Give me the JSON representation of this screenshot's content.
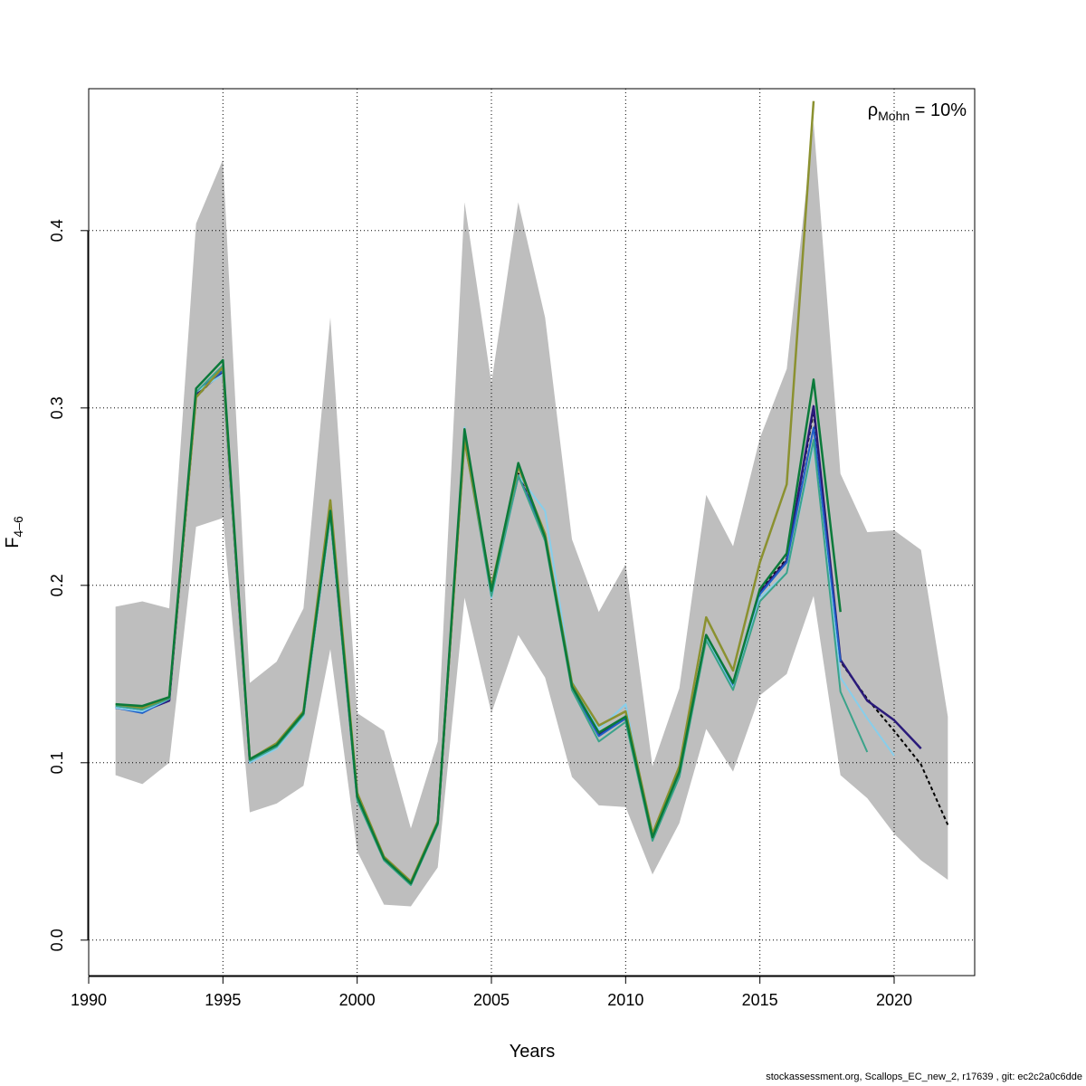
{
  "chart_data": {
    "type": "line",
    "title": "",
    "xlabel": "Years",
    "ylabel_base": "F",
    "ylabel_sub": "4–6",
    "xlim": [
      1990,
      2023
    ],
    "ylim": [
      -0.02,
      0.48
    ],
    "x_ticks": [
      1990,
      1995,
      2000,
      2005,
      2010,
      2015,
      2020
    ],
    "y_ticks": [
      0.0,
      0.1,
      0.2,
      0.3,
      0.4
    ],
    "y_tick_labels": [
      "0.0",
      "0.1",
      "0.2",
      "0.3",
      "0.4"
    ],
    "grid": true,
    "annotation": {
      "rho": "ρ",
      "sub": "Mohn",
      "text": " = 10%"
    },
    "band": {
      "x": [
        1991,
        1992,
        1993,
        1994,
        1995,
        1996,
        1997,
        1998,
        1999,
        2000,
        2001,
        2002,
        2003,
        2004,
        2005,
        2006,
        2007,
        2008,
        2009,
        2010,
        2011,
        2012,
        2013,
        2014,
        2015,
        2016,
        2017,
        2018,
        2019,
        2020,
        2021,
        2022
      ],
      "upper": [
        0.188,
        0.191,
        0.187,
        0.404,
        0.44,
        0.145,
        0.157,
        0.187,
        0.351,
        0.128,
        0.118,
        0.063,
        0.112,
        0.416,
        0.314,
        0.416,
        0.351,
        0.226,
        0.185,
        0.212,
        0.098,
        0.142,
        0.251,
        0.222,
        0.283,
        0.322,
        0.461,
        0.263,
        0.23,
        0.231,
        0.22,
        0.126
      ],
      "lower": [
        0.093,
        0.088,
        0.1,
        0.233,
        0.238,
        0.072,
        0.077,
        0.087,
        0.164,
        0.05,
        0.02,
        0.019,
        0.041,
        0.193,
        0.128,
        0.172,
        0.148,
        0.092,
        0.076,
        0.075,
        0.037,
        0.066,
        0.119,
        0.095,
        0.138,
        0.15,
        0.194,
        0.093,
        0.08,
        0.06,
        0.045,
        0.034
      ],
      "color": "#bebebe"
    },
    "series": [
      {
        "color": "#000000",
        "dashed": true,
        "width": 2,
        "x": [
          1991,
          1992,
          1993,
          1994,
          1995,
          1996,
          1997,
          1998,
          1999,
          2000,
          2001,
          2002,
          2003,
          2004,
          2005,
          2006,
          2007,
          2008,
          2009,
          2010,
          2011,
          2012,
          2013,
          2014,
          2015,
          2016,
          2017,
          2018,
          2019,
          2020,
          2021,
          2022
        ],
        "values": [
          0.131,
          0.129,
          0.135,
          0.306,
          0.322,
          0.101,
          0.109,
          0.127,
          0.24,
          0.08,
          0.046,
          0.032,
          0.066,
          0.284,
          0.196,
          0.263,
          0.228,
          0.143,
          0.116,
          0.125,
          0.058,
          0.094,
          0.171,
          0.143,
          0.197,
          0.215,
          0.298,
          0.157,
          0.136,
          0.118,
          0.099,
          0.065
        ]
      },
      {
        "color": "#2a1a7a",
        "dashed": false,
        "width": 2.5,
        "x": [
          1991,
          1992,
          1993,
          1994,
          1995,
          1996,
          1997,
          1998,
          1999,
          2000,
          2001,
          2002,
          2003,
          2004,
          2005,
          2006,
          2007,
          2008,
          2009,
          2010,
          2011,
          2012,
          2013,
          2014,
          2015,
          2016,
          2017,
          2018,
          2019,
          2020,
          2021
        ],
        "values": [
          0.131,
          0.129,
          0.135,
          0.308,
          0.32,
          0.101,
          0.109,
          0.127,
          0.24,
          0.08,
          0.046,
          0.032,
          0.066,
          0.284,
          0.196,
          0.262,
          0.228,
          0.143,
          0.116,
          0.125,
          0.058,
          0.094,
          0.172,
          0.144,
          0.196,
          0.214,
          0.301,
          0.158,
          0.135,
          0.124,
          0.108
        ]
      },
      {
        "color": "#1f5fc8",
        "dashed": false,
        "width": 2,
        "x": [
          1991,
          1992,
          1993,
          1994,
          1995,
          1996,
          1997,
          1998,
          1999,
          2000,
          2001,
          2002,
          2003,
          2004,
          2005,
          2006,
          2007,
          2008,
          2009,
          2010,
          2011,
          2012,
          2013,
          2014,
          2015,
          2016,
          2017,
          2018
        ],
        "values": [
          0.131,
          0.128,
          0.136,
          0.309,
          0.321,
          0.1,
          0.109,
          0.127,
          0.239,
          0.08,
          0.046,
          0.032,
          0.066,
          0.285,
          0.196,
          0.262,
          0.228,
          0.142,
          0.115,
          0.125,
          0.058,
          0.093,
          0.171,
          0.143,
          0.195,
          0.213,
          0.289,
          0.157
        ]
      },
      {
        "color": "#87ceeb",
        "dashed": false,
        "width": 2,
        "x": [
          1991,
          1992,
          1993,
          1994,
          1995,
          1996,
          1997,
          1998,
          1999,
          2000,
          2001,
          2002,
          2003,
          2004,
          2005,
          2006,
          2007,
          2008,
          2009,
          2010,
          2011,
          2012,
          2013,
          2014,
          2015,
          2016,
          2017,
          2018,
          2019,
          2020
        ],
        "values": [
          0.131,
          0.129,
          0.136,
          0.309,
          0.319,
          0.1,
          0.108,
          0.126,
          0.238,
          0.079,
          0.045,
          0.031,
          0.065,
          0.289,
          0.193,
          0.262,
          0.242,
          0.146,
          0.119,
          0.133,
          0.057,
          0.092,
          0.17,
          0.142,
          0.193,
          0.207,
          0.28,
          0.148,
          0.125,
          0.104
        ]
      },
      {
        "color": "#3aa38a",
        "dashed": false,
        "width": 2,
        "x": [
          1991,
          1992,
          1993,
          1994,
          1995,
          1996,
          1997,
          1998,
          1999,
          2000,
          2001,
          2002,
          2003,
          2004,
          2005,
          2006,
          2007,
          2008,
          2009,
          2010,
          2011,
          2012,
          2013,
          2014,
          2015,
          2016,
          2017,
          2018,
          2019
        ],
        "values": [
          0.132,
          0.13,
          0.136,
          0.309,
          0.324,
          0.101,
          0.109,
          0.127,
          0.24,
          0.079,
          0.045,
          0.031,
          0.065,
          0.282,
          0.194,
          0.262,
          0.225,
          0.141,
          0.112,
          0.123,
          0.056,
          0.092,
          0.169,
          0.141,
          0.191,
          0.207,
          0.282,
          0.14,
          0.106
        ]
      },
      {
        "color": "#8b9130",
        "dashed": false,
        "width": 2.5,
        "x": [
          1991,
          1992,
          1993,
          1994,
          1995,
          1996,
          1997,
          1998,
          1999,
          2000,
          2001,
          2002,
          2003,
          2004,
          2005,
          2006,
          2007,
          2008,
          2009,
          2010,
          2011,
          2012,
          2013,
          2014,
          2015,
          2016,
          2017
        ],
        "values": [
          0.133,
          0.131,
          0.137,
          0.306,
          0.323,
          0.102,
          0.111,
          0.129,
          0.248,
          0.083,
          0.047,
          0.033,
          0.067,
          0.282,
          0.199,
          0.267,
          0.229,
          0.145,
          0.121,
          0.129,
          0.06,
          0.098,
          0.182,
          0.152,
          0.213,
          0.257,
          0.473
        ]
      },
      {
        "color": "#0b7a3a",
        "dashed": false,
        "width": 2.5,
        "x": [
          1991,
          1992,
          1993,
          1994,
          1995,
          1996,
          1997,
          1998,
          1999,
          2000,
          2001,
          2002,
          2003,
          2004,
          2005,
          2006,
          2007,
          2008,
          2009,
          2010,
          2011,
          2012,
          2013,
          2014,
          2015,
          2016,
          2017,
          2018
        ],
        "values": [
          0.133,
          0.132,
          0.137,
          0.311,
          0.327,
          0.102,
          0.11,
          0.128,
          0.242,
          0.081,
          0.046,
          0.032,
          0.066,
          0.288,
          0.197,
          0.269,
          0.227,
          0.143,
          0.117,
          0.126,
          0.058,
          0.095,
          0.172,
          0.145,
          0.198,
          0.218,
          0.316,
          0.185
        ]
      }
    ]
  },
  "footer": "stockassessment.org, Scallops_EC_new_2, r17639 , git: ec2c2a0c6dde"
}
